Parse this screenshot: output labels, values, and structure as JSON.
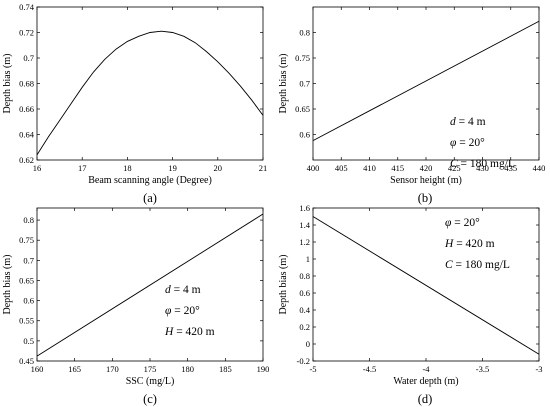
{
  "chart_data": [
    {
      "type": "line",
      "panel_label": "(a)",
      "xlabel": "Beam scanning angle (Degree)",
      "ylabel": "Depth bias (m)",
      "xlim": [
        16,
        21
      ],
      "ylim": [
        0.62,
        0.74
      ],
      "xticks": [
        16,
        17,
        18,
        19,
        20,
        21
      ],
      "yticks": [
        0.62,
        0.64,
        0.66,
        0.68,
        0.7,
        0.72,
        0.74
      ],
      "series": [
        {
          "x": [
            16,
            16.25,
            16.5,
            16.75,
            17,
            17.25,
            17.5,
            17.75,
            18,
            18.25,
            18.5,
            18.75,
            19,
            19.25,
            19.5,
            19.75,
            20,
            20.25,
            20.5,
            20.75,
            21
          ],
          "y": [
            0.624,
            0.638,
            0.651,
            0.664,
            0.677,
            0.689,
            0.699,
            0.707,
            0.713,
            0.717,
            0.72,
            0.721,
            0.72,
            0.717,
            0.712,
            0.705,
            0.697,
            0.688,
            0.678,
            0.667,
            0.655
          ]
        }
      ],
      "annotations": []
    },
    {
      "type": "line",
      "panel_label": "(b)",
      "xlabel": "Sensor height (m)",
      "ylabel": "Depth bias (m)",
      "xlim": [
        400,
        440
      ],
      "ylim": [
        0.55,
        0.85
      ],
      "xticks": [
        400,
        405,
        410,
        415,
        420,
        425,
        430,
        435,
        440
      ],
      "yticks": [
        0.6,
        0.65,
        0.7,
        0.75,
        0.8
      ],
      "series": [
        {
          "x": [
            400,
            440
          ],
          "y": [
            0.588,
            0.822
          ]
        }
      ],
      "annotations": [
        {
          "var": "d",
          "rest": " = 4 m"
        },
        {
          "var": "φ",
          "rest": " = 20°"
        },
        {
          "var": "C",
          "rest": " = 180 mg/L"
        }
      ]
    },
    {
      "type": "line",
      "panel_label": "(c)",
      "xlabel": "SSC (mg/L)",
      "ylabel": "Depth bias (m)",
      "xlim": [
        160,
        190
      ],
      "ylim": [
        0.45,
        0.83
      ],
      "xticks": [
        160,
        165,
        170,
        175,
        180,
        185,
        190
      ],
      "yticks": [
        0.45,
        0.5,
        0.55,
        0.6,
        0.65,
        0.7,
        0.75,
        0.8
      ],
      "series": [
        {
          "x": [
            160,
            190
          ],
          "y": [
            0.462,
            0.815
          ]
        }
      ],
      "annotations": [
        {
          "var": "d",
          "rest": " = 4 m"
        },
        {
          "var": "φ",
          "rest": " = 20°"
        },
        {
          "var": "H",
          "rest": " = 420 m"
        }
      ]
    },
    {
      "type": "line",
      "panel_label": "(d)",
      "xlabel": "Water depth (m)",
      "ylabel": "Depth bias (m)",
      "xlim": [
        -5,
        -3
      ],
      "ylim": [
        -0.2,
        1.6
      ],
      "xticks": [
        -5,
        -4.5,
        -4,
        -3.5,
        -3
      ],
      "yticks": [
        -0.2,
        0,
        0.2,
        0.4,
        0.6,
        0.8,
        1,
        1.2,
        1.4,
        1.6
      ],
      "series": [
        {
          "x": [
            -5,
            -3
          ],
          "y": [
            1.5,
            -0.12
          ]
        }
      ],
      "annotations": [
        {
          "var": "φ",
          "rest": " = 20°"
        },
        {
          "var": "H",
          "rest": " = 420 m"
        },
        {
          "var": "C",
          "rest": " = 180 mg/L"
        }
      ]
    }
  ]
}
